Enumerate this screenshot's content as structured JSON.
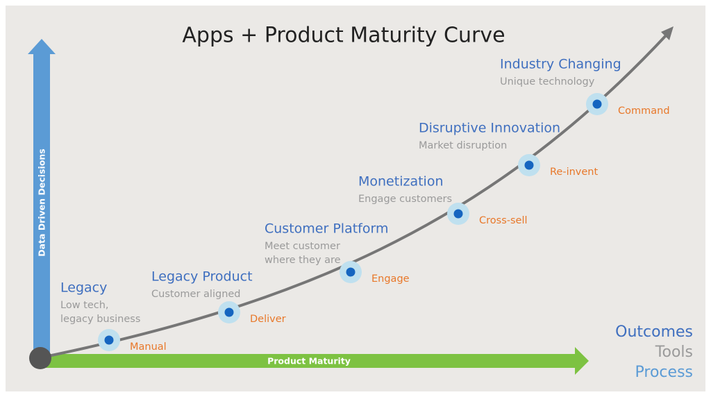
{
  "title": "Apps + Product Maturity Curve",
  "y_axis_label": "Data Driven Decisions",
  "x_axis_label": "Product Maturity",
  "stages": [
    {
      "title": "Legacy",
      "subtitle": [
        "Low tech,",
        "legacy business"
      ],
      "action": "Manual"
    },
    {
      "title": "Legacy Product",
      "subtitle": [
        "Customer aligned"
      ],
      "action": "Deliver"
    },
    {
      "title": "Customer Platform",
      "subtitle": [
        "Meet customer",
        "where they are"
      ],
      "action": "Engage"
    },
    {
      "title": "Monetization",
      "subtitle": [
        "Engage customers"
      ],
      "action": "Cross-sell"
    },
    {
      "title": "Disruptive Innovation",
      "subtitle": [
        "Market disruption"
      ],
      "action": "Re-invent"
    },
    {
      "title": "Industry Changing",
      "subtitle": [
        "Unique technology"
      ],
      "action": "Command"
    }
  ],
  "legend": [
    "Outcomes",
    "Tools",
    "Process"
  ]
}
